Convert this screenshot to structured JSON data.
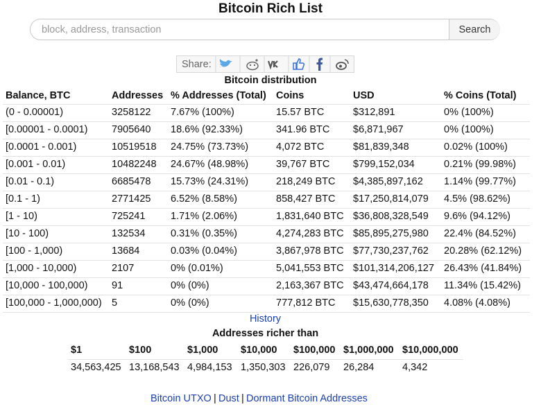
{
  "header": {
    "title": "Bitcoin Rich List"
  },
  "search": {
    "placeholder": "block, address, transaction",
    "button": "Search"
  },
  "share": {
    "label": "Share:"
  },
  "distribution": {
    "title": "Bitcoin distribution",
    "columns": [
      "Balance, BTC",
      "Addresses",
      "% Addresses (Total)",
      "Coins",
      "USD",
      "% Coins (Total)"
    ],
    "rows": [
      [
        "(0 - 0.00001)",
        "3258122",
        "7.67% (100%)",
        "15.57 BTC",
        "$312,891",
        "0% (100%)"
      ],
      [
        "[0.00001 - 0.0001)",
        "7905640",
        "18.6% (92.33%)",
        "341.96 BTC",
        "$6,871,967",
        "0% (100%)"
      ],
      [
        "[0.0001 - 0.001)",
        "10519518",
        "24.75% (73.73%)",
        "4,072 BTC",
        "$81,839,348",
        "0.02% (100%)"
      ],
      [
        "[0.001 - 0.01)",
        "10482248",
        "24.67% (48.98%)",
        "39,767 BTC",
        "$799,152,034",
        "0.21% (99.98%)"
      ],
      [
        "[0.01 - 0.1)",
        "6685478",
        "15.73% (24.31%)",
        "218,249 BTC",
        "$4,385,897,162",
        "1.14% (99.77%)"
      ],
      [
        "[0.1 - 1)",
        "2771425",
        "6.52% (8.58%)",
        "858,427 BTC",
        "$17,250,814,079",
        "4.5% (98.62%)"
      ],
      [
        "[1 - 10)",
        "725241",
        "1.71% (2.06%)",
        "1,831,640 BTC",
        "$36,808,328,549",
        "9.6% (94.12%)"
      ],
      [
        "[10 - 100)",
        "132534",
        "0.31% (0.35%)",
        "4,274,283 BTC",
        "$85,895,275,980",
        "22.4% (84.52%)"
      ],
      [
        "[100 - 1,000)",
        "13684",
        "0.03% (0.04%)",
        "3,867,978 BTC",
        "$77,730,237,762",
        "20.28% (62.12%)"
      ],
      [
        "[1,000 - 10,000)",
        "2107",
        "0% (0.01%)",
        "5,041,553 BTC",
        "$101,314,206,127",
        "26.43% (41.84%)"
      ],
      [
        "[10,000 - 100,000)",
        "91",
        "0% (0%)",
        "2,163,367 BTC",
        "$43,474,664,178",
        "11.34% (15.42%)"
      ],
      [
        "[100,000 - 1,000,000)",
        "5",
        "0% (0%)",
        "777,812 BTC",
        "$15,630,778,350",
        "4.08% (4.08%)"
      ]
    ]
  },
  "history_link": "History",
  "richer": {
    "title": "Addresses richer than",
    "columns": [
      "$1",
      "$100",
      "$1,000",
      "$10,000",
      "$100,000",
      "$1,000,000",
      "$10,000,000"
    ],
    "values": [
      "34,563,425",
      "13,168,543",
      "4,984,153",
      "1,350,303",
      "226,079",
      "26,284",
      "4,342"
    ]
  },
  "footer": {
    "links": [
      "Bitcoin UTXO",
      "Dust",
      "Dormant Bitcoin Addresses"
    ],
    "separator": "|"
  }
}
